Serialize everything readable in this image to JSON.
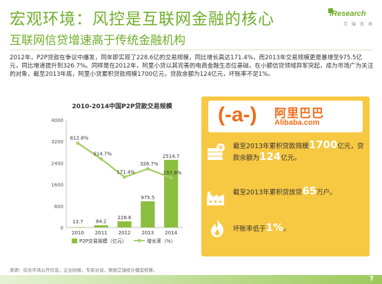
{
  "header": {
    "title": "宏观环境：风控是互联网金融的核心",
    "subtitle": "互联网信贷增速高于传统金融机构",
    "brand_name": "iResearch",
    "brand_sub": "艾 瑞 咨 询"
  },
  "paragraph": "2012年，P2P贷款在争议中爆发，同年即实现了228.6亿的交易规模，同比增长高达171.4%，而2013年交易规模更是暴增至975.5亿元，同比增速提升到326.7%。同样是在2012年，阿里小贷以其完善的电商金融生态位基础，在小额信贷领域异军突起，成为市场广为关注的对象，截至2013年底，阿里小贷累积贷款规模1700亿元，贷款余额为124亿元，坏账率不足1%。",
  "chart_data": {
    "type": "bar",
    "title": "2010-2014中国P2P贷款交易规模",
    "categories": [
      "2010",
      "2011",
      "2012",
      "2013",
      "2014"
    ],
    "series": [
      {
        "name": "P2P交易规模（亿元）",
        "type": "bar",
        "values": [
          13.7,
          84.2,
          228.6,
          975.5,
          2514.7
        ],
        "color": "#8cbf3f"
      },
      {
        "name": "增长率（%）",
        "type": "line",
        "values": [
          812.8,
          514.7,
          171.4,
          326.7,
          157.8
        ],
        "labels": [
          "812.8%",
          "514.7%",
          "171.4%",
          "326.7%",
          "157.8%"
        ],
        "color": "#a9cf6d"
      }
    ],
    "bar_labels": [
      "13.7",
      "84.2",
      "228.6",
      "975.5",
      "2514.7"
    ],
    "yticks": [
      "0",
      "800",
      "1600",
      "2400",
      "3200",
      "4000"
    ],
    "ylim": [
      0,
      4000
    ],
    "line_ylim": [
      0,
      1200
    ],
    "legend": "bottom",
    "grid": false
  },
  "panel": {
    "logo_mark": "(-a-)",
    "logo_cn": "阿里巴巴",
    "logo_en": "Alibaba.com",
    "stat1": {
      "pre": "截至2013年累积贷款规模",
      "value": "1700",
      "mid": "亿元，贷款余额为",
      "value2": "124",
      "post": "亿元。"
    },
    "stat2": {
      "pre": "截至2013年累积贷放贷",
      "value": "65",
      "post": "万户。"
    },
    "stat3": {
      "pre": "坏账率低于",
      "value": "1%",
      "post": "。"
    },
    "colors": {
      "panel": "#f7c842",
      "brand": "#f06c1a",
      "accent": "#6fae2a"
    }
  },
  "footer": {
    "source": "来源：综合市场公开信息，企业财报，专家访谈，根据艾瑞统计模型核算。",
    "page": "7"
  }
}
